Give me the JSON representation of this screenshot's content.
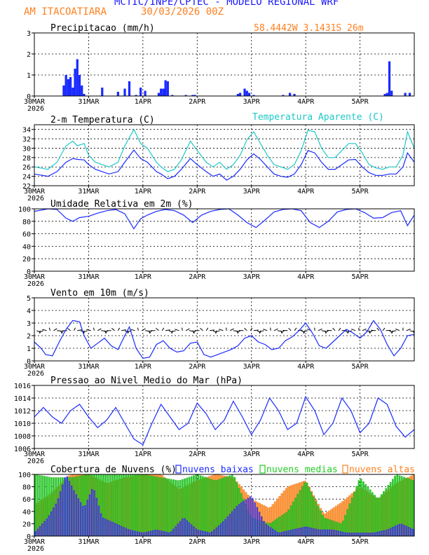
{
  "header": {
    "title": "MCTIC/INPE/CPTEC - MODELO REGIONAL WRF",
    "location": "AM ITACOATIARA",
    "run": "30/03/2026 00Z",
    "coords": "58.4442W  3.1431S  26m"
  },
  "colors": {
    "title": "#1a1aff",
    "orange": "#ff7f1e",
    "blue": "#1a2aff",
    "cyan": "#1fc8c8",
    "green": "#22cc22",
    "lowcloud": "#2c2cff",
    "orangebar": "#ff9e4a",
    "greenbar": "#27cf27"
  },
  "x_axis": {
    "ticks": [
      "30MAR",
      "31MAR",
      "1APR",
      "2APR",
      "3APR",
      "4APR",
      "5APR"
    ],
    "year": "2026",
    "hours_total": 168
  },
  "chart_data": [
    {
      "id": "precip",
      "type": "bar",
      "title": "Precipitacao (mm/h)",
      "ylim": [
        0,
        3
      ],
      "yticks": [
        "0",
        "1",
        "2",
        "3"
      ],
      "ytick_values": [
        0,
        1,
        2,
        3
      ],
      "grid": true,
      "hours": [
        13,
        14,
        15,
        16,
        17,
        18,
        19,
        20,
        21,
        22,
        30,
        37,
        40,
        42,
        45,
        47,
        49,
        55,
        56,
        57,
        58,
        59,
        61,
        67,
        70,
        71,
        90,
        91,
        93,
        94,
        95,
        97,
        110,
        113,
        113,
        115,
        155,
        156,
        157,
        158,
        164,
        166
      ],
      "values": [
        0.5,
        1.0,
        0.8,
        0.9,
        0.4,
        1.3,
        1.75,
        1.0,
        0.5,
        0.1,
        0.4,
        0.2,
        0.35,
        0.7,
        0.05,
        0.4,
        0.25,
        0.15,
        0.35,
        0.35,
        0.75,
        0.7,
        0.05,
        0.05,
        0.05,
        0.05,
        0.1,
        0.15,
        0.35,
        0.25,
        0.15,
        0.05,
        0.05,
        0.1,
        0.15,
        0.1,
        0.1,
        0.15,
        1.65,
        0.25,
        0.15,
        0.15
      ]
    },
    {
      "id": "temp",
      "type": "line",
      "title": "2-m Temperatura (C)",
      "subtitle": "Temperatura Aparente (C)",
      "ylim": [
        22,
        35
      ],
      "yticks": [
        "22",
        "24",
        "26",
        "28",
        "30",
        "32",
        "34"
      ],
      "ytick_values": [
        22,
        24,
        26,
        28,
        30,
        32,
        34
      ],
      "grid": true,
      "x": [
        0,
        6,
        10,
        14,
        17,
        19,
        22,
        24,
        27,
        30,
        33,
        37,
        40,
        44,
        47,
        50,
        54,
        56,
        59,
        62,
        65,
        69,
        72,
        76,
        79,
        82,
        85,
        88,
        91,
        94,
        97,
        100,
        103,
        106,
        109,
        112,
        115,
        118,
        121,
        124,
        127,
        130,
        133,
        136,
        139,
        142,
        145,
        148,
        151,
        154,
        157,
        160,
        163,
        165,
        168
      ],
      "series": [
        {
          "name": "2-m Temperatura",
          "color": "blue",
          "values": [
            24.5,
            24.0,
            25.0,
            27.0,
            27.8,
            27.6,
            27.5,
            26.5,
            25.5,
            25.0,
            24.5,
            25.0,
            27.0,
            29.6,
            27.8,
            27.0,
            25.0,
            24.5,
            23.5,
            24.0,
            25.5,
            27.8,
            26.5,
            25.0,
            24.0,
            24.5,
            23.2,
            24.0,
            25.5,
            27.5,
            28.8,
            27.6,
            26.0,
            24.5,
            24.0,
            23.8,
            24.5,
            26.5,
            29.5,
            29.0,
            27.0,
            25.5,
            25.5,
            26.5,
            27.5,
            27.6,
            26.0,
            24.8,
            24.2,
            24.2,
            24.5,
            24.5,
            26.0,
            29.0,
            27.0
          ]
        },
        {
          "name": "Temperatura Aparente",
          "color": "cyan",
          "values": [
            26.0,
            25.5,
            27.0,
            30.5,
            31.5,
            30.5,
            31.0,
            28.5,
            27.0,
            26.5,
            26.0,
            27.0,
            30.5,
            34.0,
            31.0,
            30.0,
            27.0,
            26.0,
            25.0,
            25.5,
            27.5,
            31.5,
            29.5,
            27.0,
            26.0,
            27.0,
            25.5,
            26.5,
            28.5,
            31.8,
            33.5,
            31.0,
            28.5,
            26.5,
            26.0,
            25.5,
            26.5,
            29.5,
            33.8,
            33.5,
            30.0,
            28.0,
            28.0,
            29.5,
            31.0,
            31.0,
            29.0,
            26.5,
            25.8,
            25.5,
            26.0,
            26.0,
            28.5,
            33.5,
            30.0
          ]
        }
      ]
    },
    {
      "id": "rh",
      "type": "line",
      "title": "Umidade Relativa em 2m (%)",
      "ylim": [
        0,
        100
      ],
      "yticks": [
        "0",
        "20",
        "40",
        "60",
        "80",
        "100"
      ],
      "ytick_values": [
        0,
        20,
        40,
        60,
        80,
        100
      ],
      "grid": true,
      "x": [
        0,
        6,
        10,
        14,
        17,
        20,
        24,
        28,
        32,
        36,
        40,
        44,
        47,
        50,
        54,
        58,
        62,
        66,
        70,
        74,
        78,
        82,
        86,
        90,
        94,
        98,
        102,
        106,
        110,
        114,
        118,
        122,
        126,
        130,
        134,
        138,
        142,
        146,
        150,
        154,
        158,
        162,
        165,
        168
      ],
      "series": [
        {
          "name": "Umidade Relativa",
          "color": "blue",
          "values": [
            96,
            100,
            99,
            85,
            80,
            86,
            88,
            93,
            97,
            99,
            92,
            68,
            84,
            90,
            96,
            99,
            97,
            90,
            78,
            90,
            96,
            99,
            100,
            90,
            78,
            70,
            82,
            95,
            99,
            100,
            97,
            78,
            70,
            80,
            95,
            99,
            100,
            94,
            85,
            86,
            94,
            97,
            73,
            90
          ]
        }
      ]
    },
    {
      "id": "wind",
      "type": "line",
      "title": "Vento em 10m (m/s)",
      "ylim": [
        0,
        5
      ],
      "yticks": [
        "0",
        "1",
        "2",
        "3",
        "4",
        "5"
      ],
      "ytick_values": [
        0,
        1,
        2,
        3,
        4,
        5
      ],
      "grid": true,
      "barb_level": 2.4,
      "x": [
        0,
        3,
        5,
        8,
        11,
        14,
        17,
        20,
        22,
        25,
        28,
        31,
        34,
        37,
        40,
        42,
        45,
        48,
        51,
        54,
        57,
        60,
        63,
        66,
        69,
        72,
        75,
        78,
        81,
        84,
        87,
        90,
        93,
        96,
        99,
        102,
        105,
        108,
        111,
        114,
        117,
        120,
        123,
        126,
        129,
        132,
        135,
        138,
        141,
        144,
        147,
        150,
        153,
        156,
        159,
        162,
        165,
        168
      ],
      "series": [
        {
          "name": "Vento",
          "color": "blue",
          "values": [
            1.5,
            1.0,
            0.5,
            0.4,
            1.5,
            2.5,
            3.2,
            3.1,
            2.0,
            1.0,
            1.4,
            1.8,
            1.2,
            0.9,
            2.0,
            2.7,
            1.0,
            0.2,
            0.3,
            1.3,
            1.6,
            1.0,
            0.7,
            0.8,
            1.4,
            1.5,
            0.5,
            0.3,
            0.5,
            0.7,
            0.9,
            1.2,
            1.8,
            2.0,
            1.5,
            1.3,
            0.9,
            1.0,
            1.6,
            1.9,
            2.4,
            3.0,
            2.2,
            1.2,
            1.0,
            1.5,
            2.0,
            2.5,
            2.2,
            1.8,
            2.3,
            3.2,
            2.5,
            1.3,
            0.4,
            1.0,
            2.0,
            2.1
          ]
        }
      ]
    },
    {
      "id": "pmsl",
      "type": "line",
      "title": "Pressao ao Nivel Medio do Mar (hPa)",
      "ylim": [
        1006,
        1016
      ],
      "yticks": [
        "1006",
        "1008",
        "1010",
        "1012",
        "1014",
        "1016"
      ],
      "ytick_values": [
        1006,
        1008,
        1010,
        1012,
        1014,
        1016
      ],
      "grid": true,
      "x": [
        0,
        4,
        8,
        12,
        16,
        20,
        24,
        28,
        32,
        36,
        40,
        44,
        48,
        52,
        56,
        60,
        64,
        68,
        72,
        76,
        80,
        84,
        88,
        92,
        96,
        100,
        104,
        108,
        112,
        116,
        120,
        124,
        128,
        132,
        136,
        140,
        144,
        148,
        152,
        156,
        160,
        164,
        168
      ],
      "series": [
        {
          "name": "Pressao",
          "color": "blue",
          "values": [
            1011.0,
            1012.5,
            1011.0,
            1010.0,
            1012.0,
            1013.0,
            1011.0,
            1009.3,
            1010.5,
            1012.5,
            1010.0,
            1007.5,
            1006.6,
            1010.0,
            1013.0,
            1011.0,
            1009.0,
            1010.0,
            1013.2,
            1011.5,
            1009.0,
            1010.5,
            1013.5,
            1011.0,
            1008.2,
            1010.5,
            1014.0,
            1012.0,
            1009.0,
            1010.0,
            1014.2,
            1012.0,
            1008.2,
            1010.0,
            1014.0,
            1012.0,
            1008.5,
            1010.0,
            1014.0,
            1013.0,
            1009.5,
            1007.8,
            1009.0
          ]
        }
      ]
    },
    {
      "id": "clouds",
      "type": "bar",
      "title": "Cobertura de Nuvens (%)",
      "legend": [
        "nuvens baixas",
        "nuvens medias",
        "nuvens altas"
      ],
      "ylim": [
        0,
        100
      ],
      "yticks": [
        "0",
        "20",
        "40",
        "60",
        "80",
        "100"
      ],
      "ytick_values": [
        0,
        20,
        40,
        60,
        80,
        100
      ],
      "grid": true,
      "hour_range": [
        0,
        168
      ],
      "alta_x": [
        0,
        8,
        16,
        24,
        32,
        40,
        48,
        56,
        64,
        72,
        80,
        88,
        96,
        104,
        112,
        120,
        128,
        136,
        144,
        152,
        160,
        168
      ],
      "alta_v": [
        50,
        70,
        100,
        100,
        85,
        95,
        100,
        100,
        75,
        90,
        100,
        95,
        60,
        45,
        80,
        90,
        35,
        55,
        80,
        60,
        85,
        100
      ],
      "media_x": [
        0,
        8,
        16,
        24,
        32,
        40,
        48,
        56,
        64,
        72,
        80,
        88,
        96,
        104,
        112,
        120,
        128,
        136,
        144,
        152,
        160,
        168
      ],
      "media_v": [
        100,
        95,
        95,
        100,
        100,
        100,
        100,
        95,
        90,
        100,
        90,
        100,
        30,
        20,
        40,
        90,
        30,
        20,
        95,
        60,
        100,
        90
      ],
      "baixa_x": [
        0,
        6,
        10,
        14,
        18,
        22,
        26,
        30,
        36,
        42,
        48,
        54,
        60,
        66,
        72,
        78,
        84,
        90,
        96,
        102,
        108,
        114,
        120,
        126,
        132,
        138,
        144,
        150,
        156,
        162,
        168
      ],
      "baixa_v": [
        5,
        30,
        55,
        100,
        70,
        45,
        80,
        30,
        20,
        10,
        5,
        10,
        5,
        30,
        10,
        5,
        25,
        50,
        65,
        20,
        5,
        10,
        15,
        10,
        10,
        5,
        5,
        5,
        10,
        20,
        10
      ]
    }
  ]
}
